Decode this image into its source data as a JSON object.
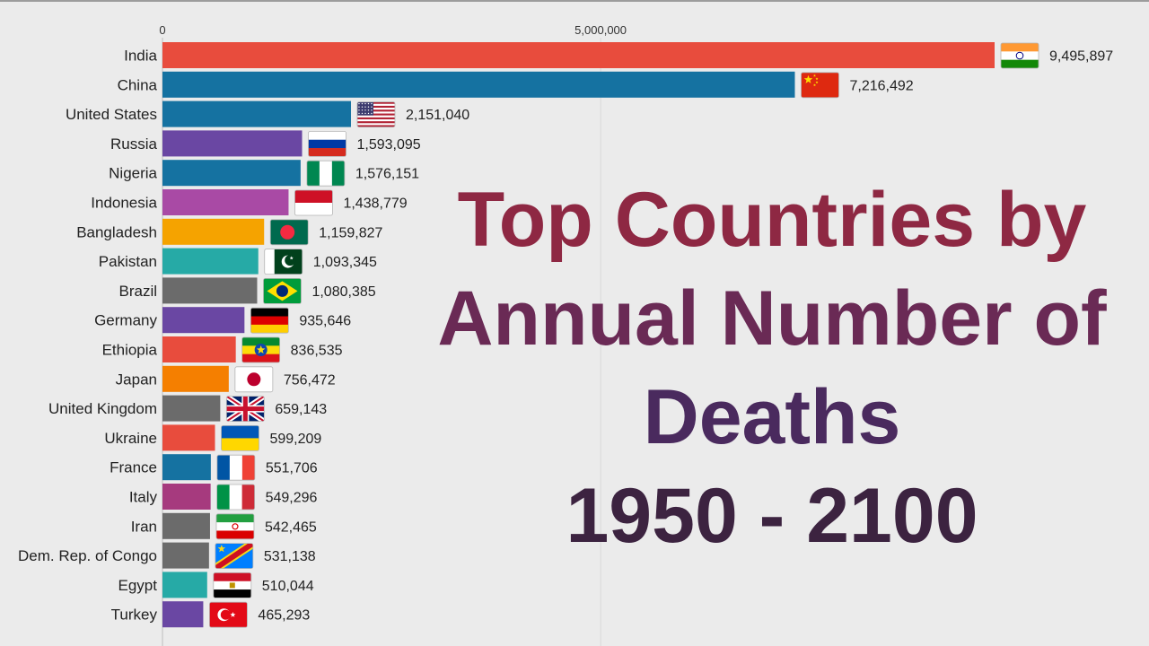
{
  "title_lines": [
    "Top Countries by",
    "Annual Number of",
    "Deaths",
    "1950 - 2100"
  ],
  "chart_data": {
    "type": "bar",
    "orientation": "horizontal",
    "title": "Top Countries by Annual Number of Deaths 1950 - 2100",
    "xlabel": "",
    "ylabel": "",
    "xlim": [
      0,
      9495897
    ],
    "x_ticks": [
      0,
      5000000
    ],
    "x_tick_labels": [
      "0",
      "5,000,000"
    ],
    "grid": true,
    "categories": [
      "India",
      "China",
      "United States",
      "Russia",
      "Nigeria",
      "Indonesia",
      "Bangladesh",
      "Pakistan",
      "Brazil",
      "Germany",
      "Ethiopia",
      "Japan",
      "United Kingdom",
      "Ukraine",
      "France",
      "Italy",
      "Iran",
      "Dem. Rep. of Congo",
      "Egypt",
      "Turkey"
    ],
    "values": [
      9495897,
      7216492,
      2151040,
      1593095,
      1576151,
      1438779,
      1159827,
      1093345,
      1080385,
      935646,
      836535,
      756472,
      659143,
      599209,
      551706,
      549296,
      542465,
      531138,
      510044,
      465293
    ],
    "value_labels": [
      "9,495,897",
      "7,216,492",
      "2,151,040",
      "1,593,095",
      "1,576,151",
      "1,438,779",
      "1,159,827",
      "1,093,345",
      "1,080,385",
      "935,646",
      "836,535",
      "756,472",
      "659,143",
      "599,209",
      "551,706",
      "549,296",
      "542,465",
      "531,138",
      "510,044",
      "465,293"
    ],
    "colors": [
      "#e84c3d",
      "#1572a1",
      "#1572a1",
      "#6a47a3",
      "#1572a1",
      "#a94aa5",
      "#f5a300",
      "#26aaa6",
      "#6b6b6b",
      "#6a47a3",
      "#e84c3d",
      "#f57f00",
      "#6b6b6b",
      "#e84c3d",
      "#1572a1",
      "#a63a7e",
      "#6b6b6b",
      "#6b6b6b",
      "#26aaa6",
      "#6a47a3"
    ],
    "flags": [
      "india-flag",
      "china-flag",
      "united-states-flag",
      "russia-flag",
      "nigeria-flag",
      "indonesia-flag",
      "bangladesh-flag",
      "pakistan-flag",
      "brazil-flag",
      "germany-flag",
      "ethiopia-flag",
      "japan-flag",
      "united-kingdom-flag",
      "ukraine-flag",
      "france-flag",
      "italy-flag",
      "iran-flag",
      "dem-rep-congo-flag",
      "egypt-flag",
      "turkey-flag"
    ]
  }
}
